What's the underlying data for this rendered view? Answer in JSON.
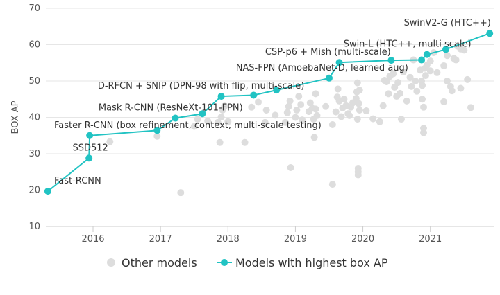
{
  "chart_data": {
    "type": "scatter",
    "title": "",
    "xlabel": "",
    "ylabel": "BOX AP",
    "xlim": [
      2015.3,
      2021.95
    ],
    "ylim": [
      10,
      70
    ],
    "yticks": [
      10,
      20,
      30,
      40,
      50,
      60,
      70
    ],
    "xticks": [
      2016,
      2017,
      2018,
      2019,
      2020,
      2021
    ],
    "grid": true,
    "legend_position": "bottom",
    "colors": {
      "other": "#dddddd",
      "best": "#21c3c3",
      "grid": "#e6e6e6",
      "axis": "#cccccc"
    },
    "series": [
      {
        "name": "Other models",
        "points": [
          [
            2016.25,
            33.3
          ],
          [
            2016.95,
            34.8
          ],
          [
            2017.3,
            19.3
          ],
          [
            2017.5,
            37.5
          ],
          [
            2017.55,
            39.5
          ],
          [
            2017.7,
            39.0
          ],
          [
            2017.85,
            38.6
          ],
          [
            2017.88,
            33.1
          ],
          [
            2017.9,
            40.1
          ],
          [
            2017.92,
            42.0
          ],
          [
            2017.95,
            43.1
          ],
          [
            2018.0,
            38.8
          ],
          [
            2018.25,
            33.1
          ],
          [
            2018.35,
            42.8
          ],
          [
            2018.45,
            44.2
          ],
          [
            2018.55,
            38.6
          ],
          [
            2018.57,
            42.0
          ],
          [
            2018.7,
            40.6
          ],
          [
            2018.85,
            38.6
          ],
          [
            2018.88,
            41.3
          ],
          [
            2018.9,
            43.0
          ],
          [
            2018.92,
            44.5
          ],
          [
            2018.93,
            26.2
          ],
          [
            2019.0,
            40.0
          ],
          [
            2019.02,
            42.0
          ],
          [
            2019.05,
            45.8
          ],
          [
            2019.08,
            43.5
          ],
          [
            2019.1,
            39.3
          ],
          [
            2019.2,
            41.6
          ],
          [
            2019.22,
            44.0
          ],
          [
            2019.25,
            42.5
          ],
          [
            2019.27,
            39.5
          ],
          [
            2019.28,
            34.5
          ],
          [
            2019.3,
            46.5
          ],
          [
            2019.3,
            42.3
          ],
          [
            2019.32,
            40.5
          ],
          [
            2019.45,
            43.0
          ],
          [
            2019.55,
            38.0
          ],
          [
            2019.55,
            21.6
          ],
          [
            2019.6,
            41.5
          ],
          [
            2019.62,
            45.6
          ],
          [
            2019.63,
            47.8
          ],
          [
            2019.65,
            44.5
          ],
          [
            2019.68,
            40.2
          ],
          [
            2019.7,
            42.6
          ],
          [
            2019.72,
            45.0
          ],
          [
            2019.75,
            43.2
          ],
          [
            2019.78,
            41.0
          ],
          [
            2019.8,
            40.5
          ],
          [
            2019.82,
            42.8
          ],
          [
            2019.85,
            44.0
          ],
          [
            2019.9,
            45.2
          ],
          [
            2019.91,
            47.0
          ],
          [
            2019.92,
            49.5
          ],
          [
            2019.92,
            39.5
          ],
          [
            2019.93,
            26.0
          ],
          [
            2019.93,
            25.0
          ],
          [
            2019.93,
            24.2
          ],
          [
            2019.94,
            43.8
          ],
          [
            2019.95,
            42.0
          ],
          [
            2019.95,
            47.5
          ],
          [
            2020.05,
            41.8
          ],
          [
            2020.15,
            39.6
          ],
          [
            2020.25,
            38.8
          ],
          [
            2020.3,
            43.2
          ],
          [
            2020.32,
            50.2
          ],
          [
            2020.35,
            49.8
          ],
          [
            2020.38,
            46.5
          ],
          [
            2020.4,
            51.3
          ],
          [
            2020.45,
            52.0
          ],
          [
            2020.47,
            48.3
          ],
          [
            2020.5,
            45.8
          ],
          [
            2020.52,
            49.6
          ],
          [
            2020.55,
            46.6
          ],
          [
            2020.57,
            39.5
          ],
          [
            2020.6,
            52.5
          ],
          [
            2020.65,
            44.5
          ],
          [
            2020.7,
            51.0
          ],
          [
            2020.72,
            48.5
          ],
          [
            2020.75,
            55.8
          ],
          [
            2020.78,
            50.0
          ],
          [
            2020.8,
            47.2
          ],
          [
            2020.85,
            53.0
          ],
          [
            2020.87,
            50.0
          ],
          [
            2020.88,
            48.8
          ],
          [
            2020.88,
            45.0
          ],
          [
            2020.9,
            42.8
          ],
          [
            2020.9,
            37.0
          ],
          [
            2020.9,
            35.8
          ],
          [
            2020.92,
            53.5
          ],
          [
            2020.93,
            51.5
          ],
          [
            2020.95,
            54.4
          ],
          [
            2021.0,
            55.5
          ],
          [
            2021.0,
            52.8
          ],
          [
            2021.05,
            57.8
          ],
          [
            2021.1,
            52.3
          ],
          [
            2021.2,
            54.2
          ],
          [
            2021.2,
            44.3
          ],
          [
            2021.25,
            57.0
          ],
          [
            2021.25,
            50.0
          ],
          [
            2021.3,
            48.5
          ],
          [
            2021.32,
            47.3
          ],
          [
            2021.35,
            56.2
          ],
          [
            2021.38,
            55.8
          ],
          [
            2021.4,
            59.6
          ],
          [
            2021.45,
            58.8
          ],
          [
            2021.45,
            48.0
          ],
          [
            2021.5,
            58.5
          ],
          [
            2021.55,
            50.4
          ],
          [
            2021.6,
            42.7
          ]
        ]
      },
      {
        "name": "Models with highest box AP",
        "points": [
          [
            2015.33,
            19.7
          ],
          [
            2015.94,
            28.8
          ],
          [
            2015.95,
            35.0
          ],
          [
            2016.95,
            36.4
          ],
          [
            2017.22,
            39.8
          ],
          [
            2017.62,
            41.0
          ],
          [
            2017.9,
            45.8
          ],
          [
            2018.38,
            46.1
          ],
          [
            2018.72,
            47.5
          ],
          [
            2019.5,
            50.8
          ],
          [
            2019.65,
            55.1
          ],
          [
            2020.42,
            55.7
          ],
          [
            2020.87,
            55.8
          ],
          [
            2020.95,
            57.3
          ],
          [
            2021.23,
            58.7
          ],
          [
            2021.88,
            63.1
          ]
        ]
      }
    ],
    "annotations": [
      {
        "text": "Fast-RCNN",
        "x": 2015.33,
        "y": 19.7
      },
      {
        "text": "SSD512",
        "x": 2015.94,
        "y": 28.8
      },
      {
        "text": "Faster R-CNN (box refinement, context, multi-scale testing)",
        "x": 2015.95,
        "y": 35.0
      },
      {
        "text": "Mask R-CNN (ResNeXt-101-FPN)",
        "x": 2017.22,
        "y": 39.8
      },
      {
        "text": "D-RFCN + SNIP (DPN-98 with flip, multi-scale)",
        "x": 2017.9,
        "y": 45.8
      },
      {
        "text": "NAS-FPN (AmoebaNet-D, learned aug)",
        "x": 2019.5,
        "y": 50.8
      },
      {
        "text": "CSP-p6 + Mish (multi-scale)",
        "x": 2019.65,
        "y": 55.1
      },
      {
        "text": "Swin-L (HTC++, multi scale)",
        "x": 2020.95,
        "y": 57.3
      },
      {
        "text": "SwinV2-G (HTC++)",
        "x": 2021.88,
        "y": 63.1
      }
    ]
  }
}
